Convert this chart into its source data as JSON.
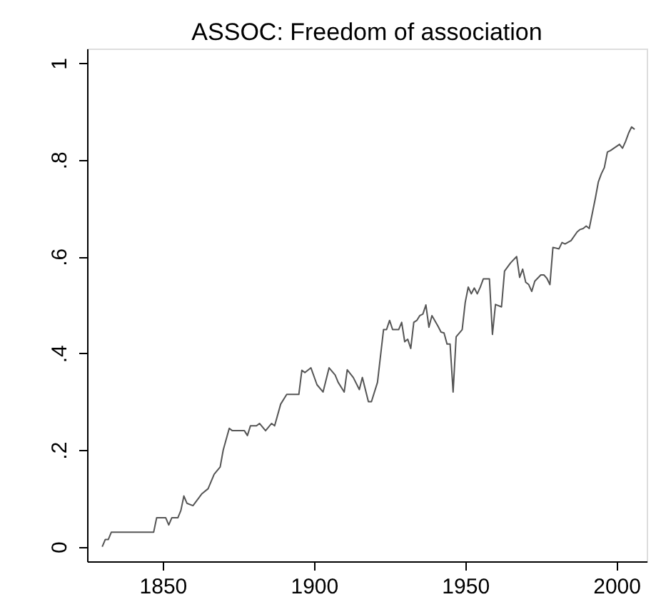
{
  "chart_data": {
    "type": "line",
    "title": "ASSOC: Freedom of association",
    "x": [
      1830,
      1831,
      1832,
      1833,
      1838,
      1839,
      1847,
      1848,
      1851,
      1852,
      1853,
      1855,
      1856,
      1857,
      1858,
      1860,
      1863,
      1865,
      1867,
      1869,
      1870,
      1872,
      1873,
      1877,
      1878,
      1879,
      1881,
      1882,
      1884,
      1886,
      1887,
      1889,
      1891,
      1895,
      1896,
      1897,
      1899,
      1901,
      1903,
      1905,
      1907,
      1908,
      1910,
      1911,
      1913,
      1915,
      1916,
      1918,
      1919,
      1921,
      1923,
      1924,
      1925,
      1926,
      1928,
      1929,
      1930,
      1931,
      1932,
      1933,
      1934,
      1935,
      1936,
      1937,
      1938,
      1939,
      1941,
      1942,
      1943,
      1944,
      1945,
      1946,
      1947,
      1949,
      1950,
      1951,
      1952,
      1953,
      1954,
      1955,
      1956,
      1958,
      1959,
      1960,
      1962,
      1963,
      1965,
      1967,
      1968,
      1969,
      1970,
      1971,
      1972,
      1973,
      1975,
      1976,
      1977,
      1978,
      1979,
      1981,
      1982,
      1983,
      1985,
      1987,
      1988,
      1989,
      1990,
      1991,
      1993,
      1994,
      1995,
      1996,
      1997,
      1998,
      2001,
      2002,
      2003,
      2004,
      2005,
      2006
    ],
    "series": [
      {
        "color": "#555555",
        "values": [
          0,
          0.015,
          0.015,
          0.03,
          0.03,
          0.03,
          0.03,
          0.06,
          0.06,
          0.045,
          0.06,
          0.06,
          0.075,
          0.105,
          0.09,
          0.085,
          0.11,
          0.12,
          0.15,
          0.165,
          0.2,
          0.245,
          0.24,
          0.24,
          0.23,
          0.25,
          0.25,
          0.255,
          0.24,
          0.255,
          0.25,
          0.295,
          0.315,
          0.315,
          0.365,
          0.36,
          0.37,
          0.335,
          0.32,
          0.37,
          0.355,
          0.34,
          0.32,
          0.366,
          0.35,
          0.325,
          0.35,
          0.3,
          0.3,
          0.34,
          0.449,
          0.449,
          0.468,
          0.449,
          0.449,
          0.464,
          0.424,
          0.429,
          0.41,
          0.464,
          0.468,
          0.478,
          0.481,
          0.5,
          0.454,
          0.478,
          0.456,
          0.444,
          0.442,
          0.419,
          0.419,
          0.32,
          0.434,
          0.449,
          0.505,
          0.537,
          0.523,
          0.535,
          0.523,
          0.537,
          0.554,
          0.554,
          0.439,
          0.501,
          0.496,
          0.57,
          0.587,
          0.6,
          0.557,
          0.574,
          0.547,
          0.542,
          0.528,
          0.549,
          0.562,
          0.562,
          0.555,
          0.542,
          0.619,
          0.616,
          0.629,
          0.626,
          0.633,
          0.651,
          0.656,
          0.658,
          0.663,
          0.658,
          0.72,
          0.754,
          0.771,
          0.784,
          0.816,
          0.819,
          0.832,
          0.824,
          0.838,
          0.855,
          0.868,
          0.863
        ]
      }
    ],
    "xlim": [
      1825,
      2010
    ],
    "xticks": [
      1850,
      1900,
      1950,
      2000
    ],
    "ylim": [
      -0.03,
      1.03
    ],
    "yticks": [
      {
        "value": 0,
        "label": "0"
      },
      {
        "value": 0.2,
        "label": ".2"
      },
      {
        "value": 0.4,
        "label": ".4"
      },
      {
        "value": 0.6,
        "label": ".6"
      },
      {
        "value": 0.8,
        "label": ".8"
      },
      {
        "value": 1,
        "label": "1"
      }
    ],
    "grid": false,
    "legend": false,
    "marker": "none",
    "line_style": "solid"
  }
}
